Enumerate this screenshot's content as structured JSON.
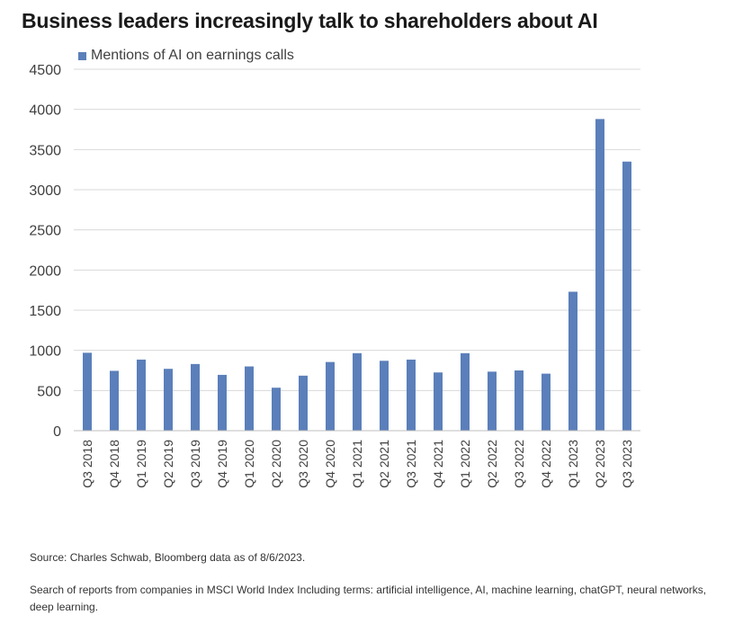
{
  "title": "Business leaders increasingly talk to shareholders about AI",
  "source": "Source: Charles Schwab, Bloomberg data as of 8/6/2023.",
  "note": "Search of reports from companies in MSCI World Index Including terms: artificial intelligence, AI, machine learning, chatGPT, neural networks, deep learning.",
  "colors": {
    "bar": "#5b7fba",
    "grid": "#d9d9d9",
    "axis": "#bfbfbf"
  },
  "chart_data": {
    "type": "bar",
    "title": "",
    "xlabel": "",
    "ylabel": "",
    "ylim": [
      0,
      4500
    ],
    "yticks": [
      0,
      500,
      1000,
      1500,
      2000,
      2500,
      3000,
      3500,
      4000,
      4500
    ],
    "grid": true,
    "legend_position": "top-left",
    "categories": [
      "Q3 2018",
      "Q4 2018",
      "Q1 2019",
      "Q2 2019",
      "Q3 2019",
      "Q4 2019",
      "Q1 2020",
      "Q2 2020",
      "Q3 2020",
      "Q4 2020",
      "Q1 2021",
      "Q2 2021",
      "Q3 2021",
      "Q4 2021",
      "Q1 2022",
      "Q2 2022",
      "Q3 2022",
      "Q4 2022",
      "Q1 2023",
      "Q2 2023",
      "Q3 2023"
    ],
    "series": [
      {
        "name": "Mentions of AI on earnings calls",
        "values": [
          970,
          745,
          885,
          770,
          830,
          695,
          800,
          535,
          685,
          855,
          965,
          870,
          885,
          725,
          965,
          735,
          750,
          710,
          1730,
          3880,
          3350
        ]
      }
    ]
  }
}
